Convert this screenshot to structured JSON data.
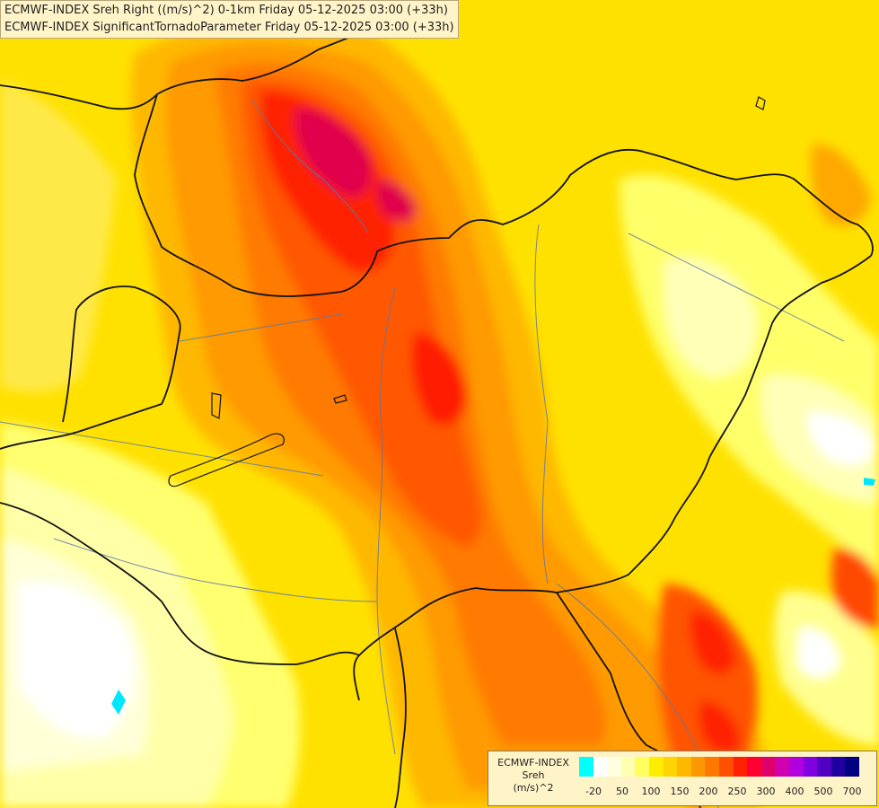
{
  "title_lines": [
    "ECMWF-INDEX Sreh Right ((m/s)^2) 0-1km Friday 05-12-2025 03:00 (+33h)",
    "ECMWF-INDEX SignificantTornadoParameter Friday 05-12-2025 03:00 (+33h)"
  ],
  "legend": {
    "title_lines": [
      "ECMWF-INDEX",
      "Sreh",
      "(m/s)^2"
    ],
    "colors": [
      "#00ffff",
      "#ffffff",
      "#ffffe0",
      "#ffffb0",
      "#ffff60",
      "#ffee00",
      "#ffd400",
      "#ffb800",
      "#ff9800",
      "#ff7800",
      "#ff5000",
      "#ff2000",
      "#ff0030",
      "#e0006a",
      "#d000b0",
      "#b000e0",
      "#8000e0",
      "#5000c0",
      "#2000a0",
      "#000080"
    ],
    "tick_labels": [
      "-20",
      "50",
      "100",
      "150",
      "200",
      "250",
      "300",
      "400",
      "500",
      "700"
    ]
  }
}
